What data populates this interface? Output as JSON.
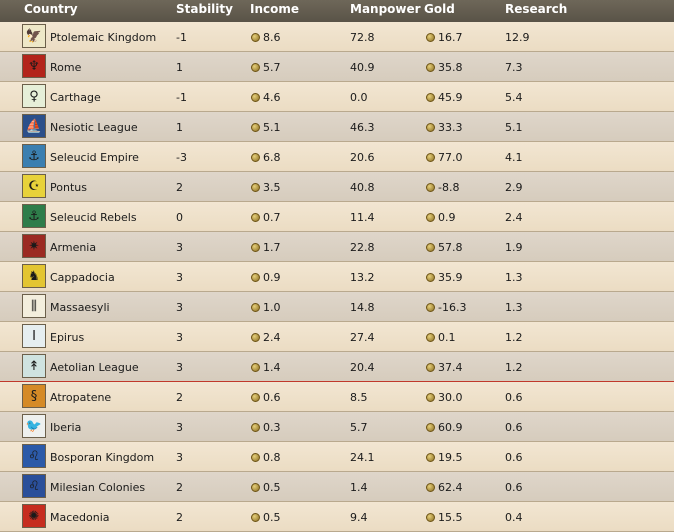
{
  "headers": {
    "country": "Country",
    "stability": "Stability",
    "income": "Income",
    "manpower": "Manpower",
    "gold": "Gold",
    "research": "Research"
  },
  "rows": [
    {
      "country": "Ptolemaic Kingdom",
      "stability": "-1",
      "income": "8.6",
      "manpower": "72.8",
      "gold": "16.7",
      "research": "12.9",
      "flag_color": "#eee8c8",
      "flag_icon": "eagle-icon",
      "flag_glyph": "🦅"
    },
    {
      "country": "Rome",
      "stability": "1",
      "income": "5.7",
      "manpower": "40.9",
      "gold": "35.8",
      "research": "7.3",
      "flag_color": "#b3241b",
      "flag_icon": "aquila-icon",
      "flag_glyph": "♆"
    },
    {
      "country": "Carthage",
      "stability": "-1",
      "income": "4.6",
      "manpower": "0.0",
      "gold": "45.9",
      "research": "5.4",
      "flag_color": "#e6efd8",
      "flag_icon": "tanit-icon",
      "flag_glyph": "♀"
    },
    {
      "country": "Nesiotic League",
      "stability": "1",
      "income": "5.1",
      "manpower": "46.3",
      "gold": "33.3",
      "research": "5.1",
      "flag_color": "#2b4f8a",
      "flag_icon": "ship-icon",
      "flag_glyph": "⛵"
    },
    {
      "country": "Seleucid Empire",
      "stability": "-3",
      "income": "6.8",
      "manpower": "20.6",
      "gold": "77.0",
      "research": "4.1",
      "flag_color": "#3b7fb0",
      "flag_icon": "anchor-icon",
      "flag_glyph": "⚓"
    },
    {
      "country": "Pontus",
      "stability": "2",
      "income": "3.5",
      "manpower": "40.8",
      "gold": "-8.8",
      "research": "2.9",
      "flag_color": "#e8d23a",
      "flag_icon": "star-crescent-icon",
      "flag_glyph": "☪"
    },
    {
      "country": "Seleucid Rebels",
      "stability": "0",
      "income": "0.7",
      "manpower": "11.4",
      "gold": "0.9",
      "research": "2.4",
      "flag_color": "#2e7d4a",
      "flag_icon": "anchor-icon",
      "flag_glyph": "⚓"
    },
    {
      "country": "Armenia",
      "stability": "3",
      "income": "1.7",
      "manpower": "22.8",
      "gold": "57.8",
      "research": "1.9",
      "flag_color": "#9b2a22",
      "flag_icon": "star-icon",
      "flag_glyph": "✷"
    },
    {
      "country": "Cappadocia",
      "stability": "3",
      "income": "0.9",
      "manpower": "13.2",
      "gold": "35.9",
      "research": "1.3",
      "flag_color": "#e3c531",
      "flag_icon": "horse-icon",
      "flag_glyph": "♞"
    },
    {
      "country": "Massaesyli",
      "stability": "3",
      "income": "1.0",
      "manpower": "14.8",
      "gold": "-16.3",
      "research": "1.3",
      "flag_color": "#f3eedd",
      "flag_icon": "pillars-icon",
      "flag_glyph": "⫼"
    },
    {
      "country": "Epirus",
      "stability": "3",
      "income": "2.4",
      "manpower": "27.4",
      "gold": "0.1",
      "research": "1.2",
      "flag_color": "#e6eef0",
      "flag_icon": "pillar-icon",
      "flag_glyph": "Ι"
    },
    {
      "country": "Aetolian League",
      "stability": "3",
      "income": "1.4",
      "manpower": "20.4",
      "gold": "37.4",
      "research": "1.2",
      "flag_color": "#cfe3e0",
      "flag_icon": "spear-icon",
      "flag_glyph": "↟"
    },
    {
      "country": "Atropatene",
      "stability": "2",
      "income": "0.6",
      "manpower": "8.5",
      "gold": "30.0",
      "research": "0.6",
      "flag_color": "#d58a26",
      "flag_icon": "serpent-icon",
      "flag_glyph": "§"
    },
    {
      "country": "Iberia",
      "stability": "3",
      "income": "0.3",
      "manpower": "5.7",
      "gold": "60.9",
      "research": "0.6",
      "flag_color": "#eef0ee",
      "flag_icon": "bird-icon",
      "flag_glyph": "🐦"
    },
    {
      "country": "Bosporan Kingdom",
      "stability": "3",
      "income": "0.8",
      "manpower": "24.1",
      "gold": "19.5",
      "research": "0.6",
      "flag_color": "#2c5aa8",
      "flag_icon": "lion-icon",
      "flag_glyph": "♌"
    },
    {
      "country": "Milesian Colonies",
      "stability": "2",
      "income": "0.5",
      "manpower": "1.4",
      "gold": "62.4",
      "research": "0.6",
      "flag_color": "#2a4f9a",
      "flag_icon": "lion-icon",
      "flag_glyph": "♌"
    },
    {
      "country": "Macedonia",
      "stability": "2",
      "income": "0.5",
      "manpower": "9.4",
      "gold": "15.5",
      "research": "0.4",
      "flag_color": "#c62d1f",
      "flag_icon": "vergina-sun-icon",
      "flag_glyph": "✺"
    }
  ],
  "selected_row": 11
}
